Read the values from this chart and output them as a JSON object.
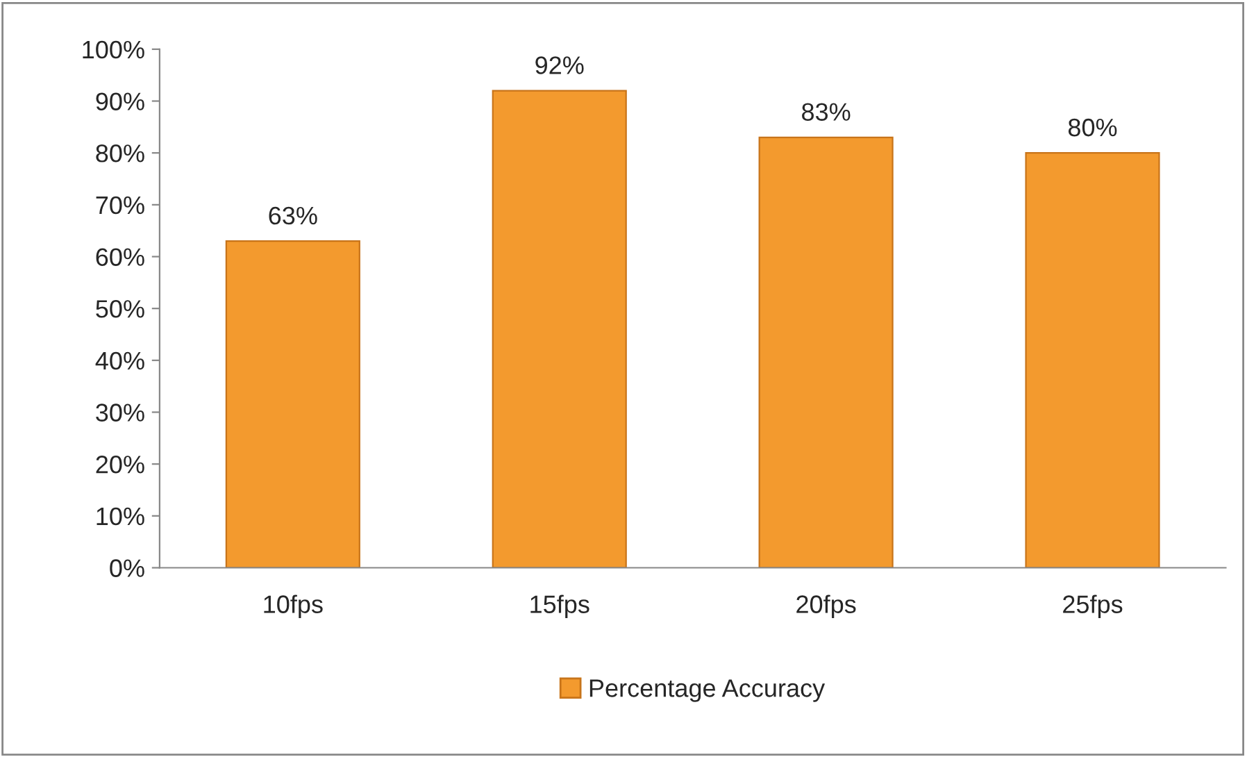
{
  "chart_data": {
    "type": "bar",
    "categories": [
      "10fps",
      "15fps",
      "20fps",
      "25fps"
    ],
    "series": [
      {
        "name": "Percentage Accuracy",
        "color": "#f39a2e",
        "values": [
          63,
          92,
          83,
          80
        ],
        "value_labels": [
          "63%",
          "92%",
          "83%",
          "80%"
        ]
      }
    ],
    "ylim": [
      0,
      100
    ],
    "yticks": [
      {
        "value": 0,
        "label": "0%"
      },
      {
        "value": 10,
        "label": "10%"
      },
      {
        "value": 20,
        "label": "20%"
      },
      {
        "value": 30,
        "label": "30%"
      },
      {
        "value": 40,
        "label": "40%"
      },
      {
        "value": 50,
        "label": "50%"
      },
      {
        "value": 60,
        "label": "60%"
      },
      {
        "value": 70,
        "label": "70%"
      },
      {
        "value": 80,
        "label": "80%"
      },
      {
        "value": 90,
        "label": "90%"
      },
      {
        "value": 100,
        "label": "100%"
      }
    ],
    "grid": false,
    "legend": "bottom"
  }
}
